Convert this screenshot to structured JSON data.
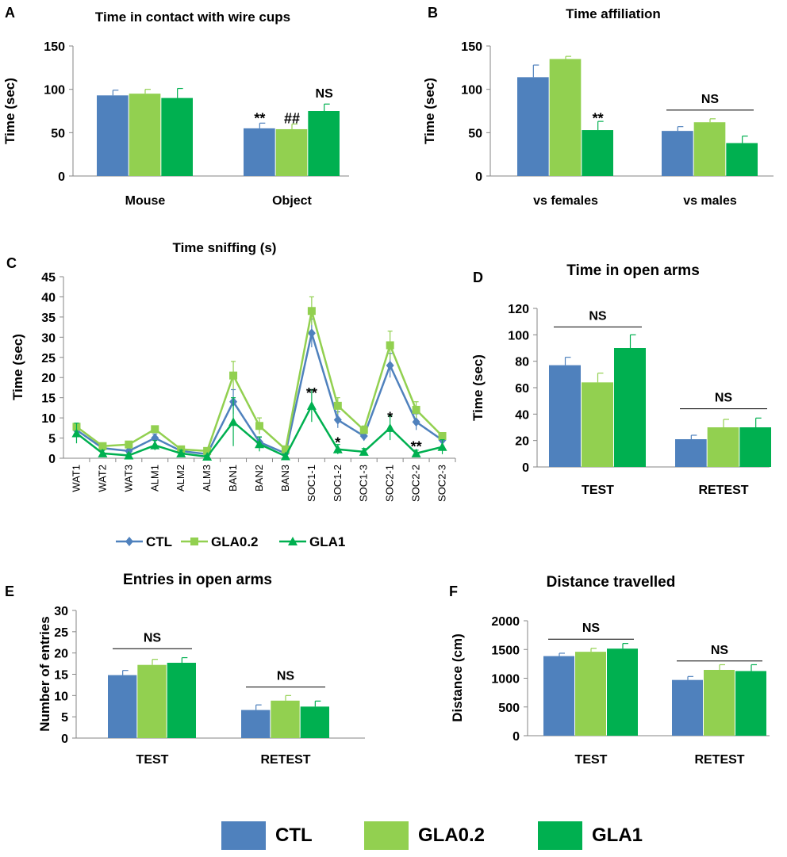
{
  "colors": {
    "CTL": "#4f81bd",
    "GLA0.2": "#92d050",
    "GLA1": "#00b050",
    "axis": "#868686",
    "err": "#555555"
  },
  "chart_data": [
    {
      "id": "A",
      "type": "bar",
      "panel_label": "A",
      "title": "Time in contact with wire cups",
      "ylabel": "Time (sec)",
      "ylim": [
        0,
        150
      ],
      "yticks": [
        0,
        50,
        100,
        150
      ],
      "categories": [
        "Mouse",
        "Object"
      ],
      "series": [
        {
          "name": "CTL",
          "values": [
            93,
            55
          ],
          "errors": [
            6,
            6
          ]
        },
        {
          "name": "GLA0.2",
          "values": [
            95,
            54
          ],
          "errors": [
            5,
            6
          ]
        },
        {
          "name": "GLA1",
          "values": [
            90,
            75
          ],
          "errors": [
            11,
            8
          ]
        }
      ],
      "annotations": [
        {
          "text": "**",
          "category": 1,
          "series": 0,
          "y": 67
        },
        {
          "text": "##",
          "category": 1,
          "series": 1,
          "y": 67
        },
        {
          "text": "NS",
          "category": 1,
          "series": 2,
          "y": 97
        }
      ]
    },
    {
      "id": "B",
      "type": "bar",
      "panel_label": "B",
      "title": "Time affiliation",
      "ylabel": "Time (sec)",
      "ylim": [
        0,
        150
      ],
      "yticks": [
        0,
        50,
        100,
        150
      ],
      "categories": [
        "vs females",
        "vs males"
      ],
      "series": [
        {
          "name": "CTL",
          "values": [
            114,
            52
          ],
          "errors": [
            14,
            5
          ]
        },
        {
          "name": "GLA0.2",
          "values": [
            135,
            62
          ],
          "errors": [
            3,
            4
          ]
        },
        {
          "name": "GLA1",
          "values": [
            53,
            38
          ],
          "errors": [
            10,
            8
          ]
        }
      ],
      "annotations": [
        {
          "text": "**",
          "category": 0,
          "series": 2,
          "y": 67
        }
      ],
      "ns_lines": [
        {
          "category": 1,
          "y": 76,
          "label": "NS"
        }
      ]
    },
    {
      "id": "C",
      "type": "line",
      "panel_label": "C",
      "title": "Time sniffing (s)",
      "ylabel": "Time (sec)",
      "ylim": [
        0,
        45
      ],
      "yticks": [
        0,
        5,
        10,
        15,
        20,
        25,
        30,
        35,
        40,
        45
      ],
      "categories": [
        "WAT1",
        "WAT2",
        "WAT3",
        "ALM1",
        "ALM2",
        "ALM3",
        "BAN1",
        "BAN2",
        "BAN3",
        "SOC1-1",
        "SOC1-2",
        "SOC1-3",
        "SOC2-1",
        "SOC2-2",
        "SOC2-3"
      ],
      "series": [
        {
          "name": "CTL",
          "marker": "diamond",
          "values": [
            7,
            2.5,
            1.8,
            5,
            1.8,
            1,
            14,
            4,
            1.2,
            31,
            9.5,
            5.5,
            23,
            9,
            4.5
          ],
          "errors": [
            1.5,
            0.8,
            0.8,
            1,
            0.6,
            0.5,
            3,
            1.2,
            0.6,
            3.5,
            2,
            1.2,
            3,
            2,
            1
          ]
        },
        {
          "name": "GLA0.2",
          "marker": "square",
          "values": [
            7.8,
            3,
            3.4,
            7.2,
            2.2,
            1.8,
            20.5,
            8,
            2.2,
            36.5,
            13,
            7,
            28,
            12,
            5.5
          ],
          "errors": [
            0.8,
            0.6,
            0.6,
            0.8,
            0.5,
            0.5,
            3.5,
            2,
            0.6,
            3.5,
            2,
            1,
            3.5,
            2,
            0.8
          ]
        },
        {
          "name": "GLA1",
          "marker": "triangle",
          "values": [
            6.2,
            1.2,
            0.7,
            3.2,
            1.2,
            0.4,
            9,
            3.5,
            0.5,
            13,
            2.2,
            1.6,
            7.5,
            1.2,
            2.8
          ],
          "errors": [
            2.5,
            0.8,
            0.5,
            1.2,
            0.8,
            0.3,
            6,
            1.8,
            0.5,
            4,
            1.2,
            0.8,
            3,
            0.8,
            1.8
          ]
        }
      ],
      "annotations": [
        {
          "text": "**",
          "category": 9,
          "y": 16.5
        },
        {
          "text": "*",
          "category": 10,
          "y": 4.2
        },
        {
          "text": "*",
          "category": 12,
          "y": 10.5
        },
        {
          "text": "**",
          "category": 13,
          "y": 3.2
        }
      ],
      "legend": [
        "CTL",
        "GLA0.2",
        "GLA1"
      ]
    },
    {
      "id": "D",
      "type": "bar",
      "panel_label": "D",
      "title": "Time in open arms",
      "ylabel": "Time (sec)",
      "ylim": [
        0,
        120
      ],
      "yticks": [
        0,
        20,
        40,
        60,
        80,
        100,
        120
      ],
      "categories": [
        "TEST",
        "RETEST"
      ],
      "series": [
        {
          "name": "CTL",
          "values": [
            77,
            21
          ],
          "errors": [
            6,
            3
          ]
        },
        {
          "name": "GLA0.2",
          "values": [
            64,
            30
          ],
          "errors": [
            7,
            6
          ]
        },
        {
          "name": "GLA1",
          "values": [
            90,
            30
          ],
          "errors": [
            10,
            7
          ]
        }
      ],
      "ns_lines": [
        {
          "category": 0,
          "y": 106,
          "label": "NS"
        },
        {
          "category": 1,
          "y": 44,
          "label": "NS"
        }
      ]
    },
    {
      "id": "E",
      "type": "bar",
      "panel_label": "E",
      "title": "Entries in open arms",
      "ylabel": "Number of entries",
      "ylim": [
        0,
        30
      ],
      "yticks": [
        0,
        5,
        10,
        15,
        20,
        25,
        30
      ],
      "categories": [
        "TEST",
        "RETEST"
      ],
      "series": [
        {
          "name": "CTL",
          "values": [
            14.8,
            6.6
          ],
          "errors": [
            1.1,
            1.2
          ]
        },
        {
          "name": "GLA0.2",
          "values": [
            17.2,
            8.8
          ],
          "errors": [
            1.3,
            1.2
          ]
        },
        {
          "name": "GLA1",
          "values": [
            17.7,
            7.4
          ],
          "errors": [
            1.2,
            1.3
          ]
        }
      ],
      "ns_lines": [
        {
          "category": 0,
          "y": 21,
          "label": "NS"
        },
        {
          "category": 1,
          "y": 12,
          "label": "NS"
        }
      ]
    },
    {
      "id": "F",
      "type": "bar",
      "panel_label": "F",
      "title": "Distance travelled",
      "ylabel": "Distance (cm)",
      "ylim": [
        0,
        2000
      ],
      "yticks": [
        0,
        500,
        1000,
        1500,
        2000
      ],
      "categories": [
        "TEST",
        "RETEST"
      ],
      "series": [
        {
          "name": "CTL",
          "values": [
            1385,
            970
          ],
          "errors": [
            50,
            60
          ]
        },
        {
          "name": "GLA0.2",
          "values": [
            1460,
            1145
          ],
          "errors": [
            60,
            90
          ]
        },
        {
          "name": "GLA1",
          "values": [
            1515,
            1125
          ],
          "errors": [
            90,
            110
          ]
        }
      ],
      "ns_lines": [
        {
          "category": 0,
          "y": 1680,
          "label": "NS"
        },
        {
          "category": 1,
          "y": 1300,
          "label": "NS"
        }
      ]
    }
  ],
  "bottom_legend": [
    {
      "name": "CTL",
      "label": "CTL"
    },
    {
      "name": "GLA0.2",
      "label": "GLA0.2"
    },
    {
      "name": "GLA1",
      "label": "GLA1"
    }
  ]
}
